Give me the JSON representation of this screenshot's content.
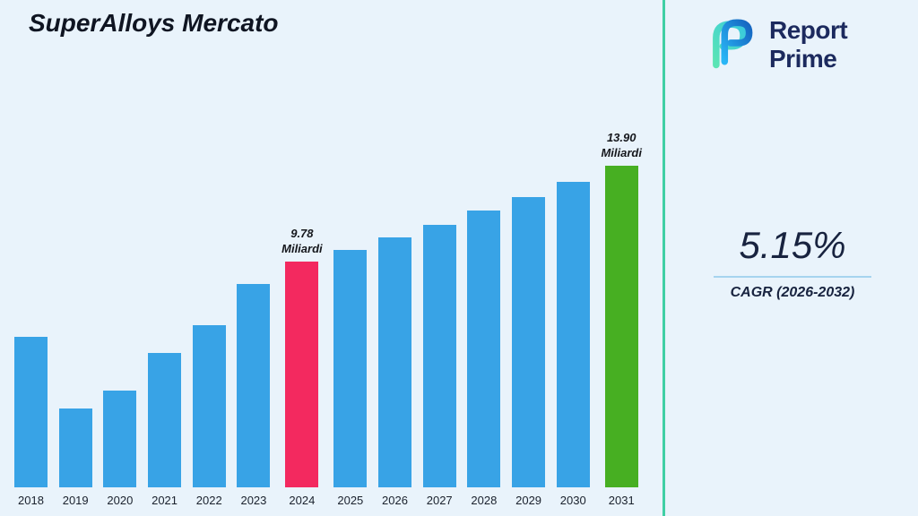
{
  "title": "SuperAlloys Mercato",
  "logo": {
    "line1": "Report",
    "line2": "Prime"
  },
  "cagr": {
    "value": "5.15%",
    "label": "CAGR (2026-2032)"
  },
  "chart_data": {
    "type": "bar",
    "title": "SuperAlloys Mercato",
    "unit": "Miliardi",
    "xlabel": "",
    "ylabel": "",
    "ylim": [
      0,
      14.5
    ],
    "grid": false,
    "legend": false,
    "categories": [
      "2018",
      "2019",
      "2020",
      "2021",
      "2022",
      "2023",
      "2024",
      "2025",
      "2026",
      "2027",
      "2028",
      "2029",
      "2030",
      "2031"
    ],
    "values": [
      6.5,
      3.4,
      4.2,
      5.8,
      7.0,
      8.8,
      9.78,
      10.28,
      10.81,
      11.37,
      11.96,
      12.57,
      13.22,
      13.9
    ],
    "bar_colors": {
      "default": "#38a3e6",
      "2024": "#f3295f",
      "2031": "#47af22"
    },
    "annotations": [
      {
        "category": "2024",
        "text": "9.78\nMiliardi"
      },
      {
        "category": "2031",
        "text": "13.90\nMiliardi"
      }
    ]
  },
  "colors": {
    "background": "#e9f3fb",
    "divider": "#40cfa4",
    "navy": "#1c2a5e",
    "underline": "#a6d4ef"
  }
}
